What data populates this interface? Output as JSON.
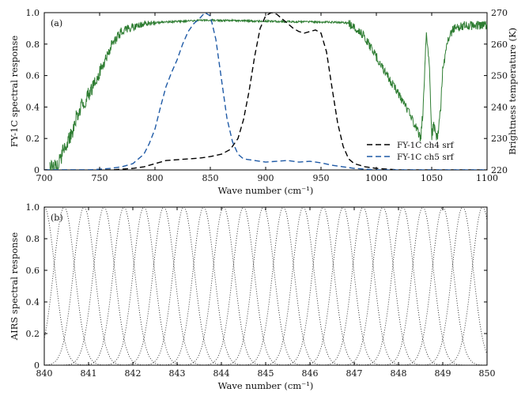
{
  "chart_data": [
    {
      "panel_label": "(a)",
      "type": "line",
      "xlabel": "Wave number (cm⁻¹)",
      "ylabel": "FY-1C spectral response",
      "y2label": "Brightness temperature (K)",
      "xlim": [
        700,
        1100
      ],
      "ylim": [
        0,
        1
      ],
      "y2lim": [
        220,
        270
      ],
      "xticks": [
        "700",
        "750",
        "800",
        "850",
        "900",
        "950",
        "1000",
        "1050",
        "1100"
      ],
      "yticks": [
        "0",
        "0.2",
        "0.4",
        "0.6",
        "0.8",
        "1.0"
      ],
      "y2ticks": [
        "220",
        "230",
        "240",
        "250",
        "260",
        "270"
      ],
      "legend_position": "bottom-right",
      "series": [
        {
          "name": "FY-1C   ch4  srf",
          "style": "dashed",
          "color": "#000000",
          "axis": "left",
          "x": [
            700,
            760,
            780,
            790,
            800,
            810,
            820,
            830,
            840,
            850,
            860,
            868,
            875,
            880,
            885,
            890,
            895,
            900,
            905,
            910,
            915,
            920,
            925,
            930,
            935,
            940,
            945,
            950,
            955,
            960,
            965,
            970,
            975,
            980,
            990,
            1000,
            1020,
            1050,
            1100
          ],
          "y": [
            0.0,
            0.0,
            0.01,
            0.02,
            0.04,
            0.06,
            0.065,
            0.07,
            0.075,
            0.085,
            0.1,
            0.13,
            0.2,
            0.32,
            0.5,
            0.72,
            0.9,
            0.98,
            1.0,
            0.99,
            0.96,
            0.93,
            0.9,
            0.88,
            0.87,
            0.88,
            0.89,
            0.87,
            0.75,
            0.52,
            0.3,
            0.15,
            0.07,
            0.04,
            0.02,
            0.01,
            0.0,
            0.0,
            0.0
          ]
        },
        {
          "name": "FY-1C   ch5  srf",
          "style": "dashed",
          "color": "#1f5aa6",
          "axis": "left",
          "x": [
            700,
            740,
            760,
            770,
            780,
            790,
            795,
            800,
            805,
            810,
            815,
            820,
            825,
            830,
            835,
            840,
            845,
            850,
            855,
            860,
            865,
            870,
            875,
            880,
            890,
            900,
            910,
            920,
            930,
            940,
            950,
            960,
            970,
            980,
            990,
            1000,
            1050,
            1100
          ],
          "y": [
            0.0,
            0.0,
            0.01,
            0.02,
            0.04,
            0.1,
            0.17,
            0.26,
            0.4,
            0.53,
            0.62,
            0.7,
            0.8,
            0.88,
            0.93,
            0.96,
            1.0,
            0.98,
            0.83,
            0.58,
            0.33,
            0.18,
            0.1,
            0.07,
            0.06,
            0.05,
            0.055,
            0.06,
            0.05,
            0.055,
            0.045,
            0.03,
            0.02,
            0.01,
            0.005,
            0.0,
            0.0,
            0.0
          ]
        },
        {
          "name": "Brightness temperature",
          "style": "solid",
          "color": "#2e7d32",
          "axis": "right",
          "x": [
            705,
            712,
            718,
            725,
            730,
            735,
            740,
            745,
            750,
            755,
            760,
            765,
            770,
            775,
            780,
            785,
            790,
            800,
            810,
            820,
            830,
            840,
            850,
            860,
            870,
            880,
            890,
            900,
            910,
            920,
            930,
            940,
            950,
            960,
            970,
            975,
            980,
            985,
            990,
            995,
            1000,
            1005,
            1010,
            1015,
            1020,
            1025,
            1030,
            1035,
            1040,
            1042,
            1045,
            1048,
            1050,
            1052,
            1055,
            1058,
            1060,
            1065,
            1070,
            1075,
            1080,
            1085,
            1090,
            1095,
            1100
          ],
          "y": [
            220,
            222,
            226,
            232,
            238,
            241,
            244,
            247,
            251,
            255,
            259,
            262,
            264,
            265,
            265.5,
            266,
            266.5,
            266.8,
            267,
            267.2,
            267.4,
            267.5,
            267.6,
            267.5,
            267.5,
            267.4,
            267.3,
            267.3,
            267.2,
            267.1,
            267.1,
            267.1,
            267.0,
            267.0,
            266.9,
            266.5,
            265.5,
            264,
            262,
            259,
            256,
            253,
            250,
            247,
            244,
            241,
            238,
            234,
            230,
            238,
            263,
            252,
            231,
            234,
            230,
            239,
            252,
            262,
            265,
            265.5,
            266,
            265.8,
            266,
            266,
            266
          ]
        }
      ]
    },
    {
      "panel_label": "(b)",
      "type": "line",
      "xlabel": "Wave number (cm⁻¹)",
      "ylabel": "AIRS spectral response",
      "xlim": [
        840,
        850
      ],
      "ylim": [
        0,
        1
      ],
      "xticks": [
        "840",
        "841",
        "842",
        "843",
        "844",
        "845",
        "846",
        "847",
        "848",
        "849",
        "850"
      ],
      "yticks": [
        "0",
        "0.2",
        "0.4",
        "0.6",
        "0.8",
        "1.0"
      ],
      "series_description_free": true,
      "series": [
        {
          "style": "dotted",
          "color": "#222222",
          "channel_centers": [
            840.0,
            840.45,
            840.9,
            841.35,
            841.8,
            842.25,
            842.7,
            843.15,
            843.6,
            844.05,
            844.5,
            844.95,
            845.4,
            845.85,
            846.3,
            846.75,
            847.2,
            847.65,
            848.1,
            848.55,
            849.0,
            849.45,
            849.9
          ],
          "fwhm": 0.56
        }
      ]
    }
  ]
}
